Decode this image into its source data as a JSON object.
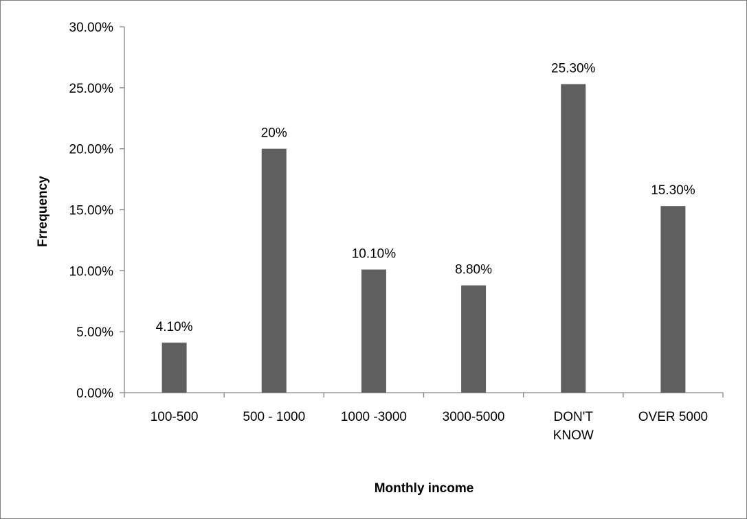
{
  "chart_data": {
    "type": "bar",
    "title": "",
    "xlabel": "Monthly income",
    "ylabel": "Frrequency",
    "categories": [
      [
        "100-500"
      ],
      [
        "500 - 1000"
      ],
      [
        "1000 -3000"
      ],
      [
        "3000-5000"
      ],
      [
        "DON'T",
        "KNOW"
      ],
      [
        "OVER 5000"
      ]
    ],
    "values": [
      4.1,
      20,
      10.1,
      8.8,
      25.3,
      15.3
    ],
    "data_labels": [
      "4.10%",
      "20%",
      "10.10%",
      "8.80%",
      "25.30%",
      "15.30%"
    ],
    "ylim": [
      0,
      30
    ],
    "yticks": [
      0,
      5,
      10,
      15,
      20,
      25,
      30
    ],
    "ytick_labels": [
      "0.00%",
      "5.00%",
      "10.00%",
      "15.00%",
      "20.00%",
      "25.00%",
      "30.00%"
    ],
    "grid": false,
    "legend": "none",
    "bar_color": "#5f5f5f",
    "axis_color": "#868686"
  }
}
